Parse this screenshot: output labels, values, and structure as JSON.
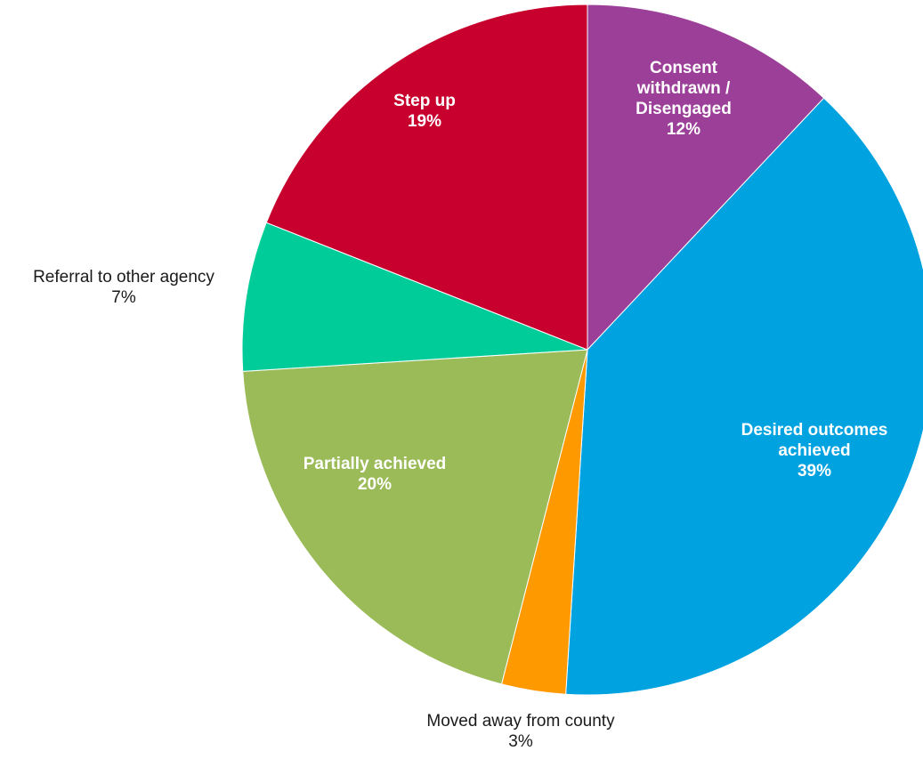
{
  "chart_data": {
    "type": "pie",
    "title": "",
    "start_angle_deg": 0,
    "direction": "clockwise",
    "slices": [
      {
        "name": "Consent withdrawn / Disengaged",
        "label_lines": [
          "Consent",
          "withdrawn /",
          "Disengaged"
        ],
        "value": 12,
        "pct_label": "12%",
        "color": "#9b3f98",
        "label_position": "inside"
      },
      {
        "name": "Desired outcomes achieved",
        "label_lines": [
          "Desired outcomes",
          "achieved"
        ],
        "value": 39,
        "pct_label": "39%",
        "color": "#00a2e0",
        "label_position": "inside"
      },
      {
        "name": "Moved away from county",
        "label_lines": [
          "Moved away from county"
        ],
        "value": 3,
        "pct_label": "3%",
        "color": "#ff9900",
        "label_position": "outside"
      },
      {
        "name": "Partially achieved",
        "label_lines": [
          "Partially achieved"
        ],
        "value": 20,
        "pct_label": "20%",
        "color": "#9bbb59",
        "label_position": "inside"
      },
      {
        "name": "Referral to other agency",
        "label_lines": [
          "Referral to other agency"
        ],
        "value": 7,
        "pct_label": "7%",
        "color": "#00cc99",
        "label_position": "outside"
      },
      {
        "name": "Step up",
        "label_lines": [
          "Step up"
        ],
        "value": 19,
        "pct_label": "19%",
        "color": "#c8002e",
        "label_position": "inside"
      }
    ]
  }
}
